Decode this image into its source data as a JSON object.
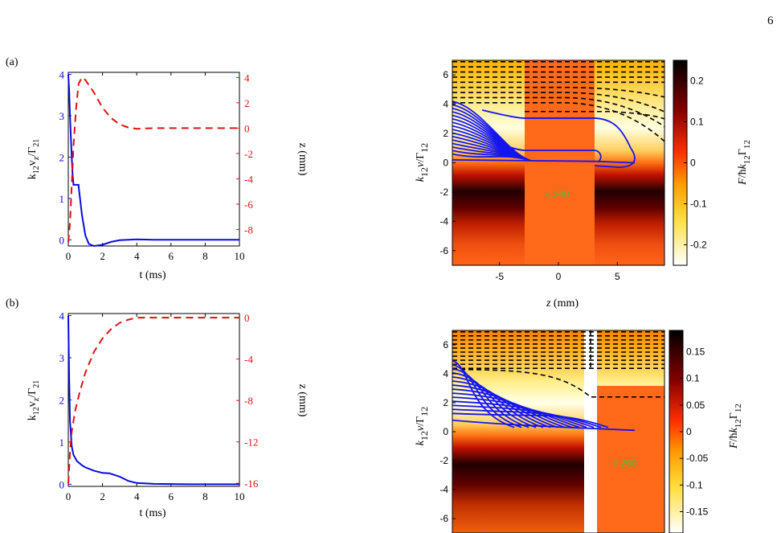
{
  "page_number": "6",
  "panel_labels": [
    "(a)",
    "(b)"
  ],
  "colors": {
    "velocity": "#0a0ae0",
    "position": "#e01010",
    "overlay_text": "#36c936",
    "boundary": "#000000"
  },
  "chart_data": [
    {
      "type": "line",
      "panel": "(a)",
      "xlabel": "t (ms)",
      "ylabel_left": "k12vz/Γ21",
      "ylabel_right": "z (mm)",
      "xlim": [
        0,
        10
      ],
      "ylim_left": [
        -0.15,
        4.05
      ],
      "ylim_right": [
        -9.3,
        4.4
      ],
      "xticks": [
        0,
        2,
        4,
        6,
        8,
        10
      ],
      "yticks_left": [
        0,
        1,
        2,
        3,
        4
      ],
      "yticks_right": [
        4,
        2,
        0,
        -2,
        -4,
        -6,
        -8
      ],
      "series": [
        {
          "axis": "left",
          "style": "solid",
          "color": "#0a0ae0",
          "x": [
            0,
            0.05,
            0.1,
            0.15,
            0.2,
            0.25,
            0.3,
            0.3,
            0.6,
            0.6,
            0.8,
            1.0,
            1.2,
            1.5,
            2.0,
            2.5,
            3.0,
            3.5,
            4.0,
            5.0,
            7.0,
            10.0
          ],
          "y": [
            4.0,
            3.6,
            3.0,
            2.5,
            2.0,
            1.6,
            1.35,
            1.33,
            1.33,
            1.3,
            0.6,
            0.1,
            -0.1,
            -0.15,
            -0.12,
            -0.05,
            -0.01,
            0.0,
            0.01,
            0.0,
            0.0,
            0.0
          ]
        },
        {
          "axis": "right",
          "style": "dashed",
          "color": "#e01010",
          "x": [
            0,
            0.1,
            0.2,
            0.3,
            0.45,
            0.6,
            0.8,
            1.0,
            1.5,
            2.0,
            2.5,
            3.0,
            3.5,
            4.0,
            5.0,
            7.0,
            10.0
          ],
          "y": [
            -9.0,
            -7.5,
            -4.5,
            -1.5,
            1.5,
            3.5,
            4.0,
            3.8,
            2.8,
            1.6,
            0.8,
            0.3,
            0.05,
            -0.05,
            0.0,
            0.0,
            0.0
          ]
        }
      ]
    },
    {
      "type": "line",
      "panel": "(b)",
      "xlabel": "t (ms)",
      "ylabel_left": "k12vz/Γ21",
      "ylabel_right": "z (mm)",
      "xlim": [
        0,
        10
      ],
      "ylim_left": [
        -0.05,
        4.05
      ],
      "ylim_right": [
        -16.3,
        0.4
      ],
      "xticks": [
        0,
        2,
        4,
        6,
        8,
        10
      ],
      "yticks_left": [
        0,
        1,
        2,
        3,
        4
      ],
      "yticks_right": [
        0,
        -4,
        -8,
        -12,
        -16
      ],
      "series": [
        {
          "axis": "left",
          "style": "solid",
          "color": "#0a0ae0",
          "x": [
            0,
            0.05,
            0.1,
            0.2,
            0.3,
            0.5,
            0.8,
            1.0,
            1.5,
            2.0,
            2.4,
            3.0,
            3.5,
            4.0,
            5.0,
            7.0,
            10.0
          ],
          "y": [
            4.0,
            2.5,
            1.5,
            0.9,
            0.7,
            0.55,
            0.45,
            0.4,
            0.32,
            0.27,
            0.26,
            0.18,
            0.08,
            0.03,
            0.01,
            0.0,
            0.0
          ]
        },
        {
          "axis": "right",
          "style": "dashed",
          "color": "#e01010",
          "x": [
            0,
            0.05,
            0.1,
            0.2,
            0.4,
            0.7,
            1.0,
            1.5,
            2.0,
            2.5,
            3.0,
            3.5,
            4.0,
            5.0,
            7.0,
            10.0
          ],
          "y": [
            -16.0,
            -14.5,
            -13.0,
            -11.0,
            -9.0,
            -7.0,
            -5.3,
            -3.3,
            -2.0,
            -1.1,
            -0.5,
            -0.2,
            0.0,
            0.0,
            0.0,
            0.0
          ]
        }
      ]
    },
    {
      "type": "heatmap",
      "panel": "(a)",
      "xlabel": "z (mm)",
      "ylabel": "k12v/Γ12",
      "colorbar_label": "F/ħk12Γ12",
      "annotation": "× 200",
      "xlim": [
        -9,
        9
      ],
      "ylim": [
        -7,
        7
      ],
      "xticks": [
        -5,
        0,
        5
      ],
      "yticks": [
        -6,
        -4,
        -2,
        0,
        2,
        4,
        6
      ],
      "colorbar_ticks": [
        "0.2",
        "0.1",
        "0",
        "-0.1",
        "-0.2"
      ],
      "colorbar_range": [
        -0.25,
        0.25
      ],
      "scaled_region_z": [
        -3,
        3
      ]
    },
    {
      "type": "heatmap",
      "panel": "(b)",
      "xlabel": "",
      "ylabel": "k12v/Γ12",
      "colorbar_label": "F/ħk12Γ12",
      "annotation": "× 200",
      "xlim": [
        -9,
        9
      ],
      "ylim": [
        -7,
        7
      ],
      "yticks": [
        -6,
        -4,
        -2,
        0,
        2,
        4,
        6
      ],
      "colorbar_ticks": [
        "0.15",
        "0.1",
        "0.05",
        "0",
        "-0.05",
        "-0.1",
        "-0.15"
      ],
      "colorbar_range": [
        -0.19,
        0.19
      ]
    }
  ]
}
